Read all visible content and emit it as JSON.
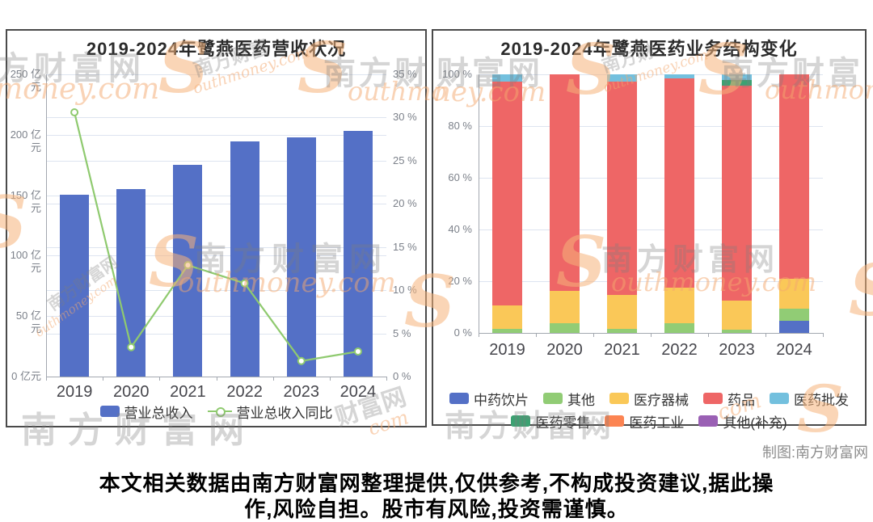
{
  "credit": "制图:南方财富网",
  "disclaimer": {
    "line1": "本文相关数据由南方财富网整理提供,仅供参考,不构成投资建议,据此操",
    "line2": "作,风险自担。股市有风险,投资需谨慎。"
  },
  "watermark": {
    "brand_cn": "南方财富网",
    "brand_en": "Southmoney.com",
    "items": [
      {
        "text": "方财富网"
      },
      {
        "text": "money.com"
      },
      {
        "text": "S"
      },
      {
        "text": "南方财富"
      },
      {
        "text": "outhmoney.com"
      },
      {
        "text": "S"
      },
      {
        "text": "南方财"
      },
      {
        "text": "outhmo"
      },
      {
        "text": "S"
      },
      {
        "text": "南方财富网"
      },
      {
        "text": "outhmoney.com"
      },
      {
        "text": "南方财富网"
      },
      {
        "text": "outhmoney.com"
      },
      {
        "text": "南方财富网"
      },
      {
        "text": "财富网"
      },
      {
        "text": "com"
      },
      {
        "text": "S"
      },
      {
        "text": "财富网"
      },
      {
        "text": "ney.com"
      },
      {
        "text": "S"
      },
      {
        "text": "南方财"
      },
      {
        "text": "outhmoney.com"
      },
      {
        "text": "S"
      },
      {
        "text": "南方财富"
      },
      {
        "text": "outhmoney"
      },
      {
        "text": "S"
      },
      {
        "text": "南方财富网"
      },
      {
        "text": "outhmoney.com"
      },
      {
        "text": "南方财富网"
      },
      {
        "text": "com"
      },
      {
        "text": "S"
      },
      {
        "text": "S"
      },
      {
        "text": "S"
      }
    ]
  },
  "chart_data": [
    {
      "type": "bar+line",
      "title": "2019-2024年鹭燕医药营收状况",
      "categories": [
        "2019",
        "2020",
        "2021",
        "2022",
        "2023",
        "2024"
      ],
      "series": [
        {
          "name": "营业总收入",
          "type": "bar",
          "axis": "left",
          "unit": "亿元",
          "color": "#5470c6",
          "values": [
            150.2,
            155.3,
            175.3,
            194.3,
            197.8,
            203.5
          ]
        },
        {
          "name": "营业总收入同比",
          "type": "line",
          "axis": "right",
          "unit": "%",
          "color": "#8fca6f",
          "values": [
            30.6,
            3.4,
            12.9,
            10.8,
            1.8,
            2.9
          ]
        }
      ],
      "axis_left": {
        "min": 0,
        "max": 250,
        "step": 50,
        "unit": "亿元",
        "tick_labels": [
          "0 亿元",
          "50 亿元",
          "100 亿元",
          "150 亿元",
          "200 亿元",
          "250 亿元"
        ]
      },
      "axis_right": {
        "min": 0,
        "max": 35,
        "step": 5,
        "unit": "%",
        "tick_labels": [
          "0 %",
          "5 %",
          "10 %",
          "15 %",
          "20 %",
          "25 %",
          "30 %",
          "35 %"
        ]
      },
      "legend": [
        "营业总收入",
        "营业总收入同比"
      ],
      "grid": true,
      "legend_position": "bottom"
    },
    {
      "type": "stacked-bar",
      "title": "2019-2024年鹭燕医药业务结构变化",
      "categories": [
        "2019",
        "2020",
        "2021",
        "2022",
        "2023",
        "2024"
      ],
      "unit": "%",
      "axis_left": {
        "min": 0,
        "max": 100,
        "step": 20,
        "unit": "%",
        "tick_labels": [
          "0 %",
          "20 %",
          "40 %",
          "60 %",
          "80 %",
          "100 %"
        ]
      },
      "series": [
        {
          "name": "中药饮片",
          "color": "#5470c6",
          "values": [
            0,
            0,
            0,
            0,
            0,
            4.6
          ]
        },
        {
          "name": "其他",
          "color": "#91cc75",
          "values": [
            1.7,
            3.9,
            1.5,
            3.8,
            1.2,
            4.8
          ]
        },
        {
          "name": "医疗器械",
          "color": "#fac858",
          "values": [
            9.0,
            12.2,
            13.2,
            13.8,
            11.4,
            11.6
          ]
        },
        {
          "name": "药品",
          "color": "#ee6666",
          "values": [
            86.6,
            83.9,
            82.4,
            80.7,
            83.1,
            79.0
          ]
        },
        {
          "name": "医药零售",
          "color": "#3ba272",
          "values": [
            0,
            0,
            0,
            0,
            2.0,
            0
          ]
        },
        {
          "name": "医药批发",
          "color": "#73c0de",
          "values": [
            2.7,
            0,
            2.9,
            1.7,
            2.3,
            0
          ]
        },
        {
          "name": "医药工业",
          "color": "#fc8452",
          "values": [
            0,
            0,
            0,
            0,
            0,
            0
          ]
        },
        {
          "name": "其他(补充)",
          "color": "#9a60b4",
          "values": [
            0,
            0,
            0,
            0,
            0,
            0
          ]
        }
      ],
      "legend_rows": [
        [
          "中药饮片",
          "其他",
          "医疗器械",
          "药品",
          "医药批发"
        ],
        [
          "医药零售",
          "医药工业",
          "其他(补充)"
        ]
      ],
      "grid": true,
      "legend_position": "bottom"
    }
  ]
}
